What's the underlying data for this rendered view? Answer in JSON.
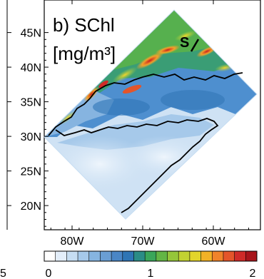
{
  "chart_data": {
    "type": "heatmap",
    "panel_label": "b) SChl",
    "units": "[mg/m³]",
    "section_label": "S",
    "yticks": [
      {
        "value": 45,
        "label": "45N"
      },
      {
        "value": 40,
        "label": "40N"
      },
      {
        "value": 35,
        "label": "35N"
      },
      {
        "value": 30,
        "label": "30N"
      },
      {
        "value": 25,
        "label": "25N"
      },
      {
        "value": 20,
        "label": "20N"
      }
    ],
    "xticks": [
      {
        "value": -80,
        "label": "80W"
      },
      {
        "value": -70,
        "label": "70W"
      },
      {
        "value": -60,
        "label": "60W"
      }
    ],
    "colorbar": {
      "min": 0,
      "max": 2,
      "tick_labels": [
        {
          "value": 0,
          "label": "0"
        },
        {
          "value": 1,
          "label": "1"
        },
        {
          "value": 2,
          "label": "2"
        }
      ],
      "colors": [
        "#ffffff",
        "#e3eefa",
        "#c6ddf2",
        "#a6c9ea",
        "#86b4e0",
        "#6a9ed4",
        "#4a86c6",
        "#2f75b5",
        "#2b8c86",
        "#3aa65a",
        "#63b545",
        "#95c63a",
        "#c2d232",
        "#e3d52b",
        "#f2b226",
        "#f0832a",
        "#e4552a",
        "#cf2b28",
        "#a8151b"
      ]
    },
    "left_partial_tick": "5"
  }
}
